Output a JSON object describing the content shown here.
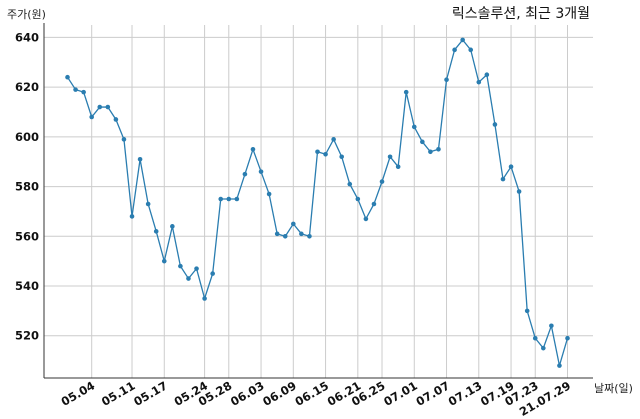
{
  "chart_data": {
    "type": "line",
    "title": "릭스솔루션, 최근 3개월",
    "ylabel": "주가(원)",
    "xlabel": "날짜(일)",
    "ylim": [
      503,
      645
    ],
    "yticks": [
      520,
      540,
      560,
      580,
      600,
      620,
      640
    ],
    "xtick_labels": [
      "05.04",
      "05.11",
      "05.17",
      "05.24",
      "05.28",
      "06.03",
      "06.09",
      "06.15",
      "06.21",
      "06.25",
      "07.01",
      "07.07",
      "07.13",
      "07.19",
      "07.23",
      "21.07.29"
    ],
    "xtick_index": [
      3,
      8,
      12,
      17,
      20,
      24,
      28,
      32,
      36,
      39,
      43,
      47,
      51,
      55,
      58,
      62
    ],
    "grid": true,
    "line_color": "#2a7db0",
    "values": [
      624,
      619,
      618,
      608,
      612,
      612,
      607,
      599,
      568,
      591,
      573,
      562,
      550,
      564,
      548,
      543,
      547,
      535,
      545,
      575,
      575,
      575,
      585,
      595,
      586,
      577,
      561,
      560,
      565,
      561,
      560,
      594,
      593,
      599,
      592,
      581,
      575,
      567,
      573,
      582,
      592,
      588,
      618,
      604,
      598,
      594,
      595,
      623,
      635,
      639,
      635,
      622,
      625,
      605,
      583,
      588,
      578,
      530,
      519,
      515,
      524,
      508,
      519
    ]
  }
}
